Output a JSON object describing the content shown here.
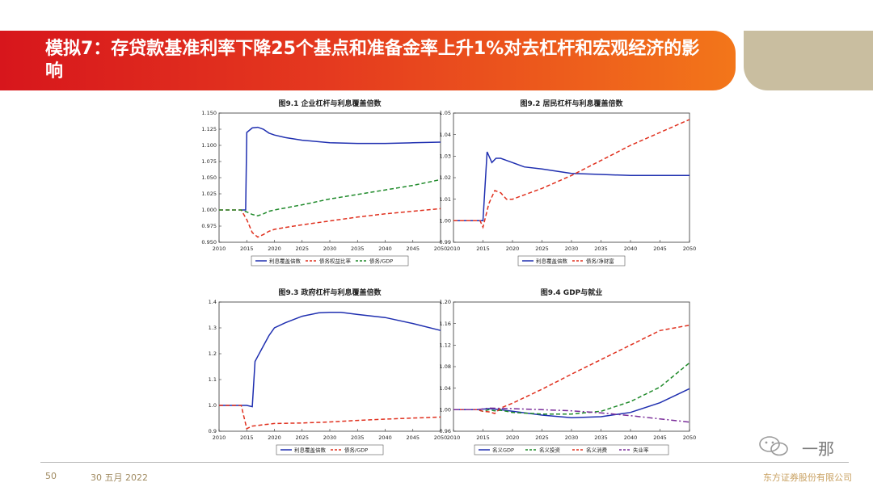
{
  "header": {
    "title": "模拟7：存贷款基准利率下降25个基点和准备金率上升1%对去杠杆和宏观经济的影响"
  },
  "footer": {
    "page": "50",
    "date": "30 五月 2022",
    "company": "东方证券股份有限公司"
  },
  "watermark": {
    "text": "一那",
    "icon": "wechat-icon"
  },
  "colors": {
    "banner_red": "#d7161c",
    "banner_orange": "#f3761a",
    "banner_gold": "#c9bea0",
    "blue": "#1f2fb0",
    "red": "#e0301e",
    "green": "#1f8a2a",
    "purple": "#7a2d9a"
  },
  "chart_data": [
    {
      "type": "line",
      "title": "图9.1  企业杠杆与利息覆盖倍数",
      "xlim": [
        2010,
        2050
      ],
      "ylim": [
        0.95,
        1.15
      ],
      "xticks": [
        "2010",
        "2015",
        "2020",
        "2025",
        "2030",
        "2035",
        "2040",
        "2045",
        "2050"
      ],
      "yticks": [
        "0.950",
        "0.975",
        "1.000",
        "1.025",
        "1.050",
        "1.075",
        "1.100",
        "1.125",
        "1.150"
      ],
      "legend": "bottom",
      "grid": false,
      "series": [
        {
          "name": "利息覆盖倍数",
          "color": "#1f2fb0",
          "dash": "solid",
          "x": [
            2014,
            2014.8,
            2015,
            2016,
            2017,
            2018,
            2019,
            2020,
            2022,
            2025,
            2030,
            2035,
            2040,
            2045,
            2050
          ],
          "y": [
            1.0,
            1.0,
            1.12,
            1.127,
            1.128,
            1.125,
            1.119,
            1.116,
            1.112,
            1.108,
            1.104,
            1.103,
            1.103,
            1.104,
            1.105
          ]
        },
        {
          "name": "债务权益比率",
          "color": "#e0301e",
          "dash": "dashed",
          "x": [
            2010,
            2014,
            2015,
            2016,
            2017,
            2018,
            2019,
            2020,
            2022,
            2025,
            2030,
            2035,
            2040,
            2045,
            2050
          ],
          "y": [
            1.0,
            1.0,
            0.985,
            0.965,
            0.958,
            0.962,
            0.967,
            0.97,
            0.973,
            0.977,
            0.983,
            0.989,
            0.994,
            0.998,
            1.002
          ]
        },
        {
          "name": "债务/GDP",
          "color": "#1f8a2a",
          "dash": "dashed",
          "x": [
            2010,
            2014,
            2015,
            2016,
            2017,
            2018,
            2019,
            2020,
            2025,
            2030,
            2035,
            2040,
            2045,
            2050
          ],
          "y": [
            1.0,
            1.0,
            0.997,
            0.993,
            0.991,
            0.994,
            0.998,
            1.0,
            1.008,
            1.017,
            1.024,
            1.031,
            1.038,
            1.047
          ]
        }
      ]
    },
    {
      "type": "line",
      "title": "图9.2  居民杠杆与利息覆盖倍数",
      "xlim": [
        2010,
        2050
      ],
      "ylim": [
        0.99,
        1.05
      ],
      "xticks": [
        "2010",
        "2015",
        "2020",
        "2025",
        "2030",
        "2035",
        "2040",
        "2045",
        "2050"
      ],
      "yticks": [
        "0.99",
        "1.00",
        "1.01",
        "1.02",
        "1.03",
        "1.04",
        "1.05"
      ],
      "legend": "bottom",
      "grid": false,
      "series": [
        {
          "name": "利息覆盖倍数",
          "color": "#1f2fb0",
          "dash": "solid",
          "x": [
            2010,
            2015,
            2015.7,
            2016.5,
            2017.2,
            2018,
            2019,
            2020,
            2022,
            2025,
            2030,
            2035,
            2040,
            2045,
            2050
          ],
          "y": [
            1.0,
            1.0,
            1.032,
            1.027,
            1.029,
            1.029,
            1.028,
            1.027,
            1.025,
            1.024,
            1.022,
            1.0215,
            1.021,
            1.021,
            1.021
          ]
        },
        {
          "name": "债务/净财富",
          "color": "#e0301e",
          "dash": "dashed",
          "x": [
            2010,
            2014.5,
            2015,
            2016,
            2017,
            2018,
            2019,
            2020,
            2022,
            2025,
            2030,
            2035,
            2040,
            2045,
            2050
          ],
          "y": [
            1.0,
            1.0,
            0.997,
            1.008,
            1.014,
            1.013,
            1.01,
            1.01,
            1.012,
            1.015,
            1.021,
            1.028,
            1.035,
            1.041,
            1.047
          ]
        }
      ]
    },
    {
      "type": "line",
      "title": "图9.3  政府杠杆与利息覆盖倍数",
      "xlim": [
        2010,
        2050
      ],
      "ylim": [
        0.9,
        1.4
      ],
      "xticks": [
        "2010",
        "2015",
        "2020",
        "2025",
        "2030",
        "2035",
        "2040",
        "2045",
        "2050"
      ],
      "yticks": [
        "0.9",
        "1.0",
        "1.1",
        "1.2",
        "1.3",
        "1.4"
      ],
      "legend": "bottom",
      "grid": false,
      "series": [
        {
          "name": "利息覆盖倍数",
          "color": "#1f2fb0",
          "dash": "solid",
          "x": [
            2010,
            2015,
            2016,
            2016.5,
            2017,
            2018,
            2019,
            2020,
            2022,
            2025,
            2028,
            2030,
            2032,
            2035,
            2040,
            2045,
            2050
          ],
          "y": [
            1.0,
            1.0,
            0.995,
            1.17,
            1.19,
            1.23,
            1.27,
            1.3,
            1.32,
            1.345,
            1.358,
            1.36,
            1.36,
            1.352,
            1.34,
            1.317,
            1.29
          ]
        },
        {
          "name": "债务/GDP",
          "color": "#e0301e",
          "dash": "dashed",
          "x": [
            2010,
            2014,
            2015,
            2016,
            2018,
            2020,
            2025,
            2030,
            2035,
            2040,
            2045,
            2050
          ],
          "y": [
            1.0,
            1.0,
            0.91,
            0.92,
            0.925,
            0.93,
            0.932,
            0.936,
            0.942,
            0.947,
            0.951,
            0.955
          ]
        }
      ]
    },
    {
      "type": "line",
      "title": "图9.4  GDP与就业",
      "xlim": [
        2010,
        2050
      ],
      "ylim": [
        0.96,
        1.2
      ],
      "xticks": [
        "2010",
        "2015",
        "2020",
        "2025",
        "2030",
        "2035",
        "2040",
        "2045",
        "2050"
      ],
      "yticks": [
        "0.96",
        "1.00",
        "1.04",
        "1.08",
        "1.12",
        "1.16",
        "1.20"
      ],
      "legend": "bottom",
      "grid": false,
      "series": [
        {
          "name": "名义GDP",
          "color": "#1f2fb0",
          "dash": "solid",
          "x": [
            2010,
            2014,
            2016,
            2018,
            2020,
            2025,
            2030,
            2035,
            2040,
            2045,
            2050
          ],
          "y": [
            1.0,
            1.0,
            1.002,
            1.0,
            0.997,
            0.99,
            0.985,
            0.987,
            0.995,
            1.013,
            1.039
          ]
        },
        {
          "name": "名义投资",
          "color": "#1f8a2a",
          "dash": "dashed",
          "x": [
            2010,
            2014,
            2015,
            2016,
            2017,
            2018,
            2020,
            2025,
            2030,
            2035,
            2040,
            2045,
            2050
          ],
          "y": [
            1.0,
            1.0,
            0.997,
            1.0,
            0.998,
            0.999,
            0.995,
            0.992,
            0.992,
            0.997,
            1.015,
            1.042,
            1.087
          ]
        },
        {
          "name": "名义消费",
          "color": "#e0301e",
          "dash": "dashed",
          "x": [
            2010,
            2014,
            2015,
            2016,
            2017,
            2018,
            2020,
            2025,
            2030,
            2035,
            2040,
            2045,
            2050
          ],
          "y": [
            1.0,
            1.0,
            0.997,
            0.996,
            0.993,
            1.003,
            1.012,
            1.038,
            1.066,
            1.093,
            1.12,
            1.147,
            1.157
          ]
        },
        {
          "name": "失业率",
          "color": "#7a2d9a",
          "dash": "dashdot",
          "x": [
            2010,
            2014,
            2016,
            2020,
            2025,
            2030,
            2035,
            2040,
            2045,
            2050
          ],
          "y": [
            1.0,
            1.0,
            1.003,
            1.002,
            1.0,
            0.998,
            0.994,
            0.989,
            0.983,
            0.977
          ]
        }
      ]
    }
  ]
}
